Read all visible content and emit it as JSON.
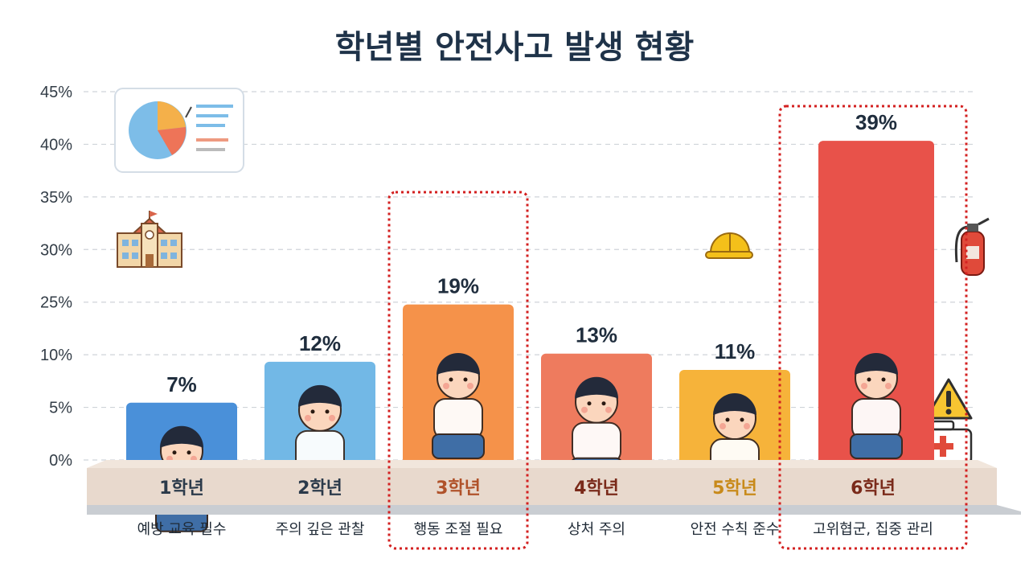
{
  "chart_data": {
    "type": "bar",
    "title": "학년별 안전사고 발생 현황",
    "categories": [
      "1학년",
      "2학년",
      "3학년",
      "4학년",
      "5학년",
      "6학년"
    ],
    "values": [
      7,
      12,
      19,
      13,
      11,
      39
    ],
    "value_labels": [
      "7%",
      "12%",
      "19%",
      "13%",
      "11%",
      "39%"
    ],
    "descriptions": [
      "예방 교육 필수",
      "주의 깊은 관찰",
      "행동 조절 필요",
      "상처 주의",
      "안전 수칙 준수",
      "고위협군, 집중 관리"
    ],
    "y_tick_labels": [
      "0%",
      "5%",
      "10%",
      "25%",
      "30%",
      "35%",
      "40%",
      "45%"
    ],
    "ylim": [
      0,
      45
    ],
    "grid": true,
    "highlighted_categories": [
      "3학년",
      "6학년"
    ],
    "colors": {
      "bars": [
        "#4a90d9",
        "#72b8e6",
        "#f5924a",
        "#ee7b5e",
        "#f6b33a",
        "#e8524a"
      ],
      "category_text": [
        "#2b3a4a",
        "#2b3a4a",
        "#b0522a",
        "#7a2a1a",
        "#c88a1a",
        "#7a2a1a"
      ],
      "highlight_border": "#d32020",
      "platform": "#e8d9cd",
      "title": "#1f3349"
    },
    "icons": [
      "pie-chart-icon",
      "school-building-icon",
      "hard-hat-icon",
      "fire-extinguisher-icon",
      "warning-icon",
      "first-aid-kit-icon"
    ]
  }
}
